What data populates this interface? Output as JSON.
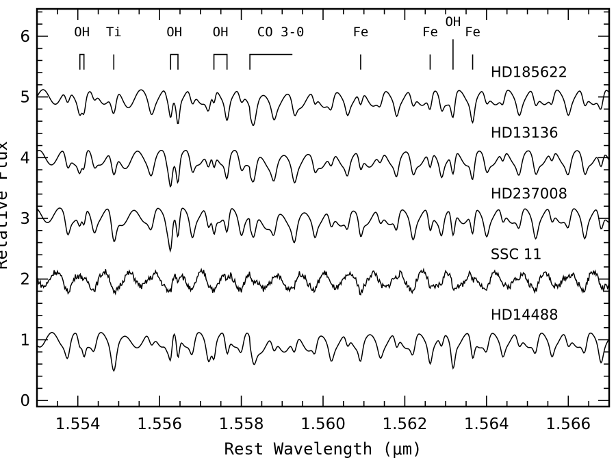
{
  "chart_data": {
    "type": "line",
    "title": "",
    "xlabel": "Rest Wavelength (μm)",
    "ylabel": "Relative Flux",
    "xlim": [
      1.553,
      1.567
    ],
    "ylim": [
      -0.1,
      6.45
    ],
    "x_ticks": [
      1.554,
      1.556,
      1.558,
      1.56,
      1.562,
      1.564,
      1.566
    ],
    "x_tick_labels": [
      "1.554",
      "1.556",
      "1.558",
      "1.560",
      "1.562",
      "1.564",
      "1.566"
    ],
    "y_ticks": [
      0,
      1,
      2,
      3,
      4,
      5,
      6
    ],
    "y_tick_labels": [
      "0",
      "1",
      "2",
      "3",
      "4",
      "5",
      "6"
    ],
    "grid": false,
    "series": [
      {
        "name": "HD185622",
        "label_x": 1.5641,
        "label_y": 5.33,
        "baseline": 5.0,
        "amp": 0.6,
        "noise": 0.0
      },
      {
        "name": "HD13136",
        "label_x": 1.5641,
        "label_y": 4.33,
        "baseline": 4.0,
        "amp": 0.65,
        "noise": 0.0
      },
      {
        "name": "HD237008",
        "label_x": 1.5641,
        "label_y": 3.33,
        "baseline": 3.05,
        "amp": 0.75,
        "noise": 0.0
      },
      {
        "name": "SSC 11",
        "label_x": 1.5641,
        "label_y": 2.33,
        "baseline": 2.0,
        "amp": 0.25,
        "noise": 0.05
      },
      {
        "name": "HD14488",
        "label_x": 1.5641,
        "label_y": 1.33,
        "baseline": 1.0,
        "amp": 0.65,
        "noise": 0.0
      }
    ],
    "line_ids": [
      {
        "label": "OH",
        "x": 1.55405,
        "type": "pair",
        "x2": 1.55415,
        "label_y": 6.0
      },
      {
        "label": "Ti",
        "x": 1.55488,
        "type": "single",
        "label_y": 6.0
      },
      {
        "label": "OH",
        "x": 1.55627,
        "type": "pair",
        "x2": 1.55645,
        "label_y": 6.0
      },
      {
        "label": "OH",
        "x": 1.55733,
        "type": "pair",
        "x2": 1.55765,
        "label_y": 6.0
      },
      {
        "label": "CO 3-0",
        "x": 1.55821,
        "type": "bandhead",
        "x2": 1.55925,
        "label_y": 6.0
      },
      {
        "label": "Fe",
        "x": 1.56092,
        "type": "single",
        "label_y": 6.0
      },
      {
        "label": "Fe",
        "x": 1.56262,
        "type": "single",
        "label_y": 6.0
      },
      {
        "label": "OH",
        "x": 1.56318,
        "type": "single",
        "label_y": 6.17
      },
      {
        "label": "Fe",
        "x": 1.56366,
        "type": "single",
        "label_y": 6.0
      }
    ]
  }
}
